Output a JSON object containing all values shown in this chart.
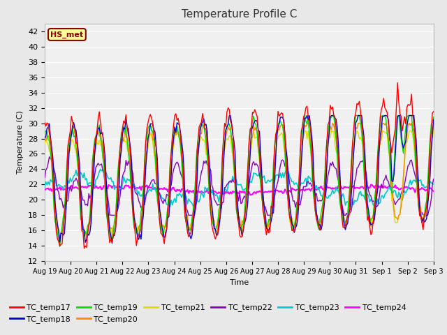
{
  "title": "Temperature Profile C",
  "xlabel": "Time",
  "ylabel": "Temperature (C)",
  "ylim": [
    12,
    43
  ],
  "yticks": [
    12,
    14,
    16,
    18,
    20,
    22,
    24,
    26,
    28,
    30,
    32,
    34,
    36,
    38,
    40,
    42
  ],
  "fig_bg_color": "#e8e8e8",
  "plot_bg_color": "#f0f0f0",
  "annotation_text": "HS_met",
  "annotation_bg": "#ffff99",
  "annotation_border": "#8b0000",
  "series_colors": {
    "TC_temp17": "#ff0000",
    "TC_temp18": "#0000cc",
    "TC_temp19": "#00dd00",
    "TC_temp20": "#ff8800",
    "TC_temp21": "#dddd00",
    "TC_temp22": "#8800bb",
    "TC_temp23": "#00cccc",
    "TC_temp24": "#ff00ff"
  },
  "x_tick_labels": [
    "Aug 19",
    "Aug 20",
    "Aug 21",
    "Aug 22",
    "Aug 23",
    "Aug 24",
    "Aug 25",
    "Aug 26",
    "Aug 27",
    "Aug 28",
    "Aug 29",
    "Aug 30",
    "Aug 31",
    "Sep 1",
    "Sep 2",
    "Sep 3"
  ],
  "num_points": 336,
  "days": 15,
  "hours_per_day": 24
}
